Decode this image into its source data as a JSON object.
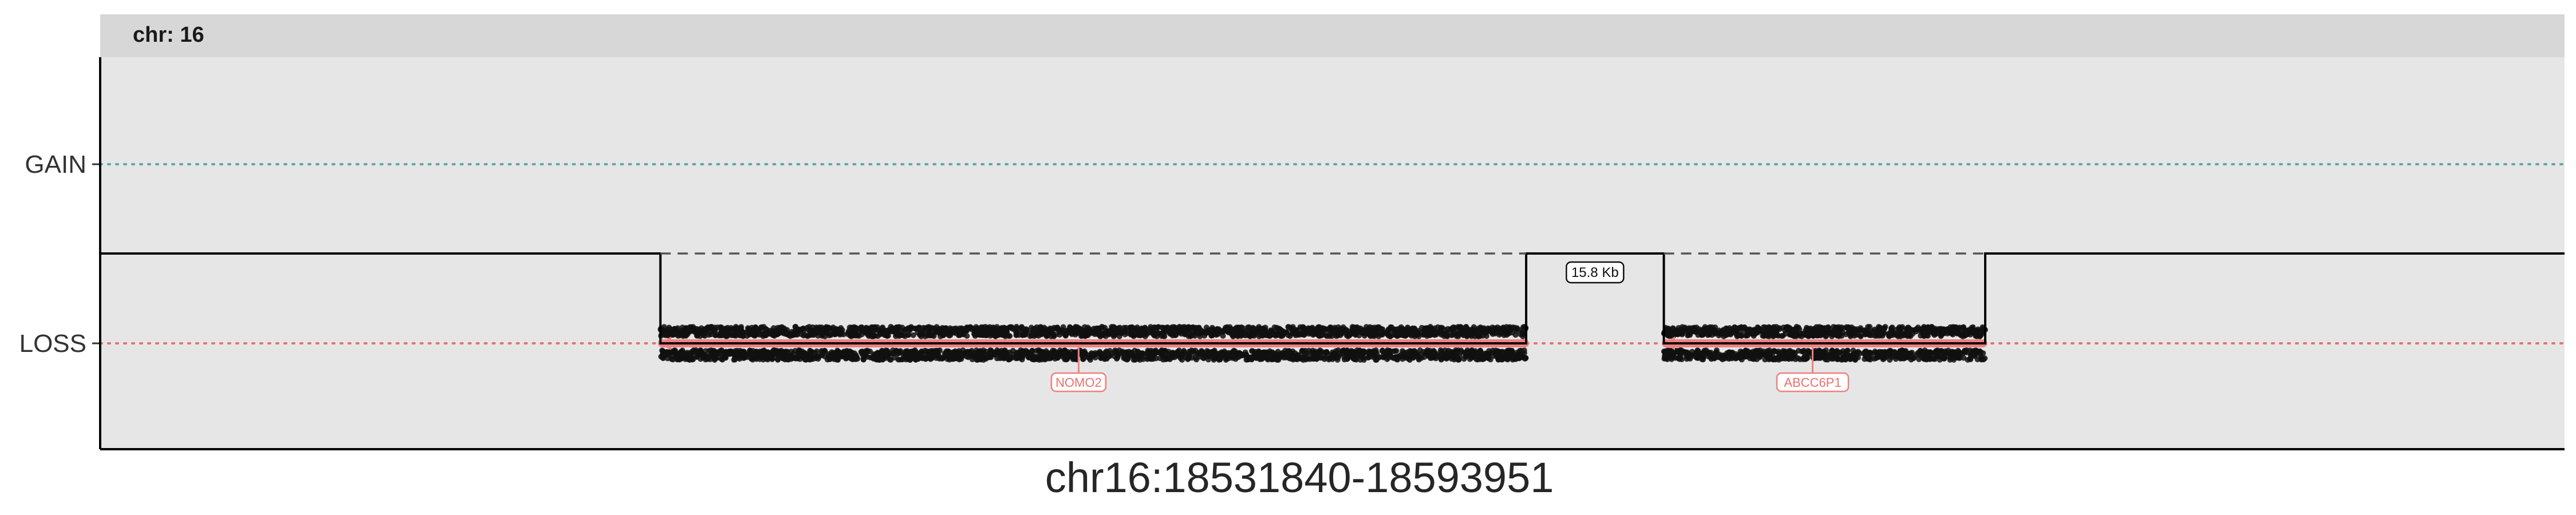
{
  "chart_data": {
    "type": "scatter",
    "title": "",
    "facet_label": "chr: 16",
    "xlabel": "chr16:18531840-18593951",
    "ylabel": "",
    "xlim": [
      18531840,
      18593951
    ],
    "y_categories": [
      "LOSS",
      "GAIN"
    ],
    "reference_lines": [
      {
        "category": "GAIN",
        "color": "#5aaba3"
      },
      {
        "category": "LOSS",
        "color": "#e8716f"
      }
    ],
    "segments": [
      {
        "call": "LOSS",
        "start": 18545960,
        "end": 18567780
      },
      {
        "call": "LOSS",
        "start": 18571250,
        "end": 18579350
      }
    ],
    "gap_label": "15.8 Kb",
    "genes": [
      {
        "name": "NOMO2",
        "start": 18546000,
        "end": 18567750,
        "label_pos": 18556500
      },
      {
        "name": "ABCC6P1",
        "start": 18571300,
        "end": 18579300,
        "label_pos": 18575000
      }
    ],
    "point_color": "#111111",
    "gene_color": "#f08080",
    "grid": false,
    "legend": "none"
  }
}
